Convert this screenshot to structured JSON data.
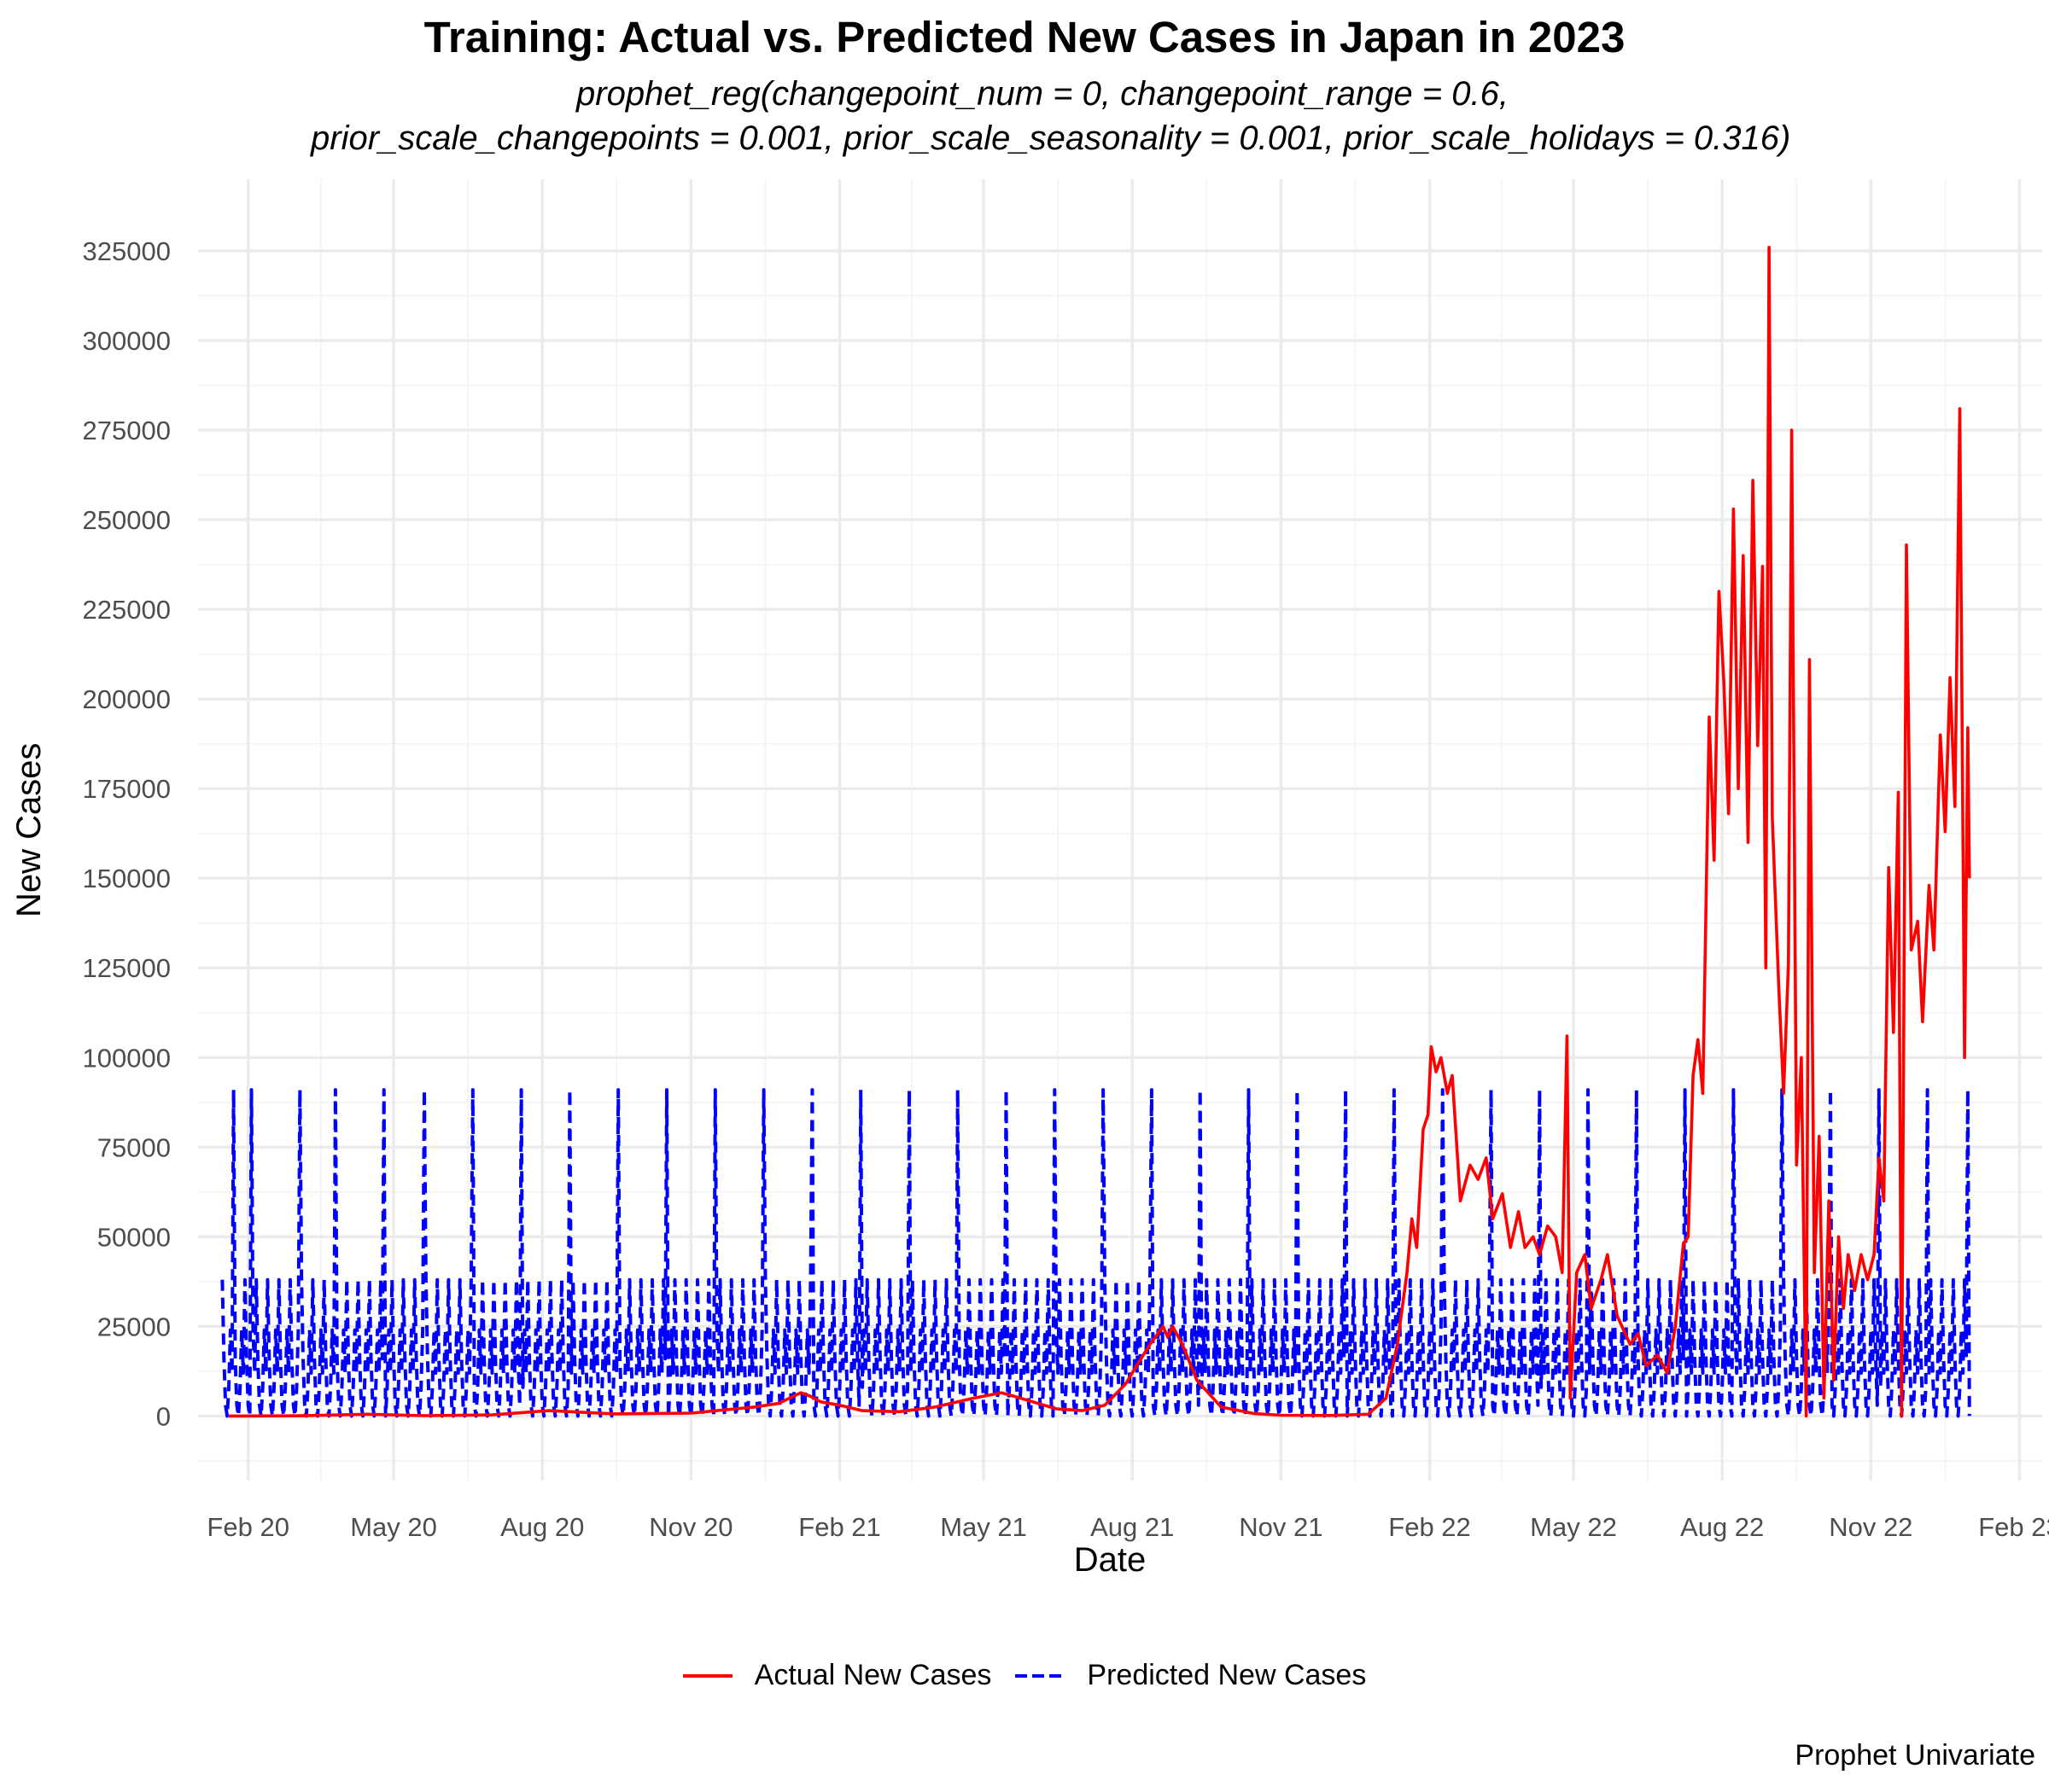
{
  "chart_data": {
    "type": "line",
    "title": "Training: Actual vs. Predicted New Cases in Japan in 2023",
    "subtitle_line1": "prophet_reg(changepoint_num = 0, changepoint_range = 0.6,",
    "subtitle_line2": "prior_scale_changepoints = 0.001, prior_scale_seasonality = 0.001, prior_scale_holidays = 0.316)",
    "xlabel": "Date",
    "ylabel": "New Cases",
    "caption": "Prophet Univariate",
    "xlim": [
      "2020-01-01",
      "2023-02-15"
    ],
    "ylim": [
      -18000,
      345000
    ],
    "x_ticks": [
      {
        "date": "2020-02-01",
        "label": "Feb 20"
      },
      {
        "date": "2020-05-01",
        "label": "May 20"
      },
      {
        "date": "2020-08-01",
        "label": "Aug 20"
      },
      {
        "date": "2020-11-01",
        "label": "Nov 20"
      },
      {
        "date": "2021-02-01",
        "label": "Feb 21"
      },
      {
        "date": "2021-05-01",
        "label": "May 21"
      },
      {
        "date": "2021-08-01",
        "label": "Aug 21"
      },
      {
        "date": "2021-11-01",
        "label": "Nov 21"
      },
      {
        "date": "2022-02-01",
        "label": "Feb 22"
      },
      {
        "date": "2022-05-01",
        "label": "May 22"
      },
      {
        "date": "2022-08-01",
        "label": "Aug 22"
      },
      {
        "date": "2022-11-01",
        "label": "Nov 22"
      },
      {
        "date": "2023-02-01",
        "label": "Feb 23"
      }
    ],
    "y_ticks": [
      0,
      25000,
      50000,
      75000,
      100000,
      125000,
      150000,
      175000,
      200000,
      225000,
      250000,
      275000,
      300000,
      325000
    ],
    "legend_position": "bottom",
    "grid": true,
    "series": [
      {
        "name": "Actual New Cases",
        "color": "#ff0000",
        "line_style": "solid",
        "points": [
          [
            "2020-01-20",
            0
          ],
          [
            "2020-03-01",
            50
          ],
          [
            "2020-04-15",
            500
          ],
          [
            "2020-05-20",
            100
          ],
          [
            "2020-07-01",
            300
          ],
          [
            "2020-08-05",
            1500
          ],
          [
            "2020-09-15",
            600
          ],
          [
            "2020-11-01",
            800
          ],
          [
            "2020-12-10",
            2500
          ],
          [
            "2020-12-25",
            3500
          ],
          [
            "2021-01-08",
            6500
          ],
          [
            "2021-01-14",
            5500
          ],
          [
            "2021-01-20",
            4000
          ],
          [
            "2021-02-01",
            3000
          ],
          [
            "2021-02-15",
            1500
          ],
          [
            "2021-03-10",
            1200
          ],
          [
            "2021-04-01",
            2500
          ],
          [
            "2021-04-25",
            5000
          ],
          [
            "2021-05-12",
            6500
          ],
          [
            "2021-05-20",
            5500
          ],
          [
            "2021-06-15",
            2000
          ],
          [
            "2021-07-01",
            1500
          ],
          [
            "2021-07-15",
            3000
          ],
          [
            "2021-07-28",
            9000
          ],
          [
            "2021-08-05",
            15000
          ],
          [
            "2021-08-12",
            20000
          ],
          [
            "2021-08-20",
            25000
          ],
          [
            "2021-08-23",
            22000
          ],
          [
            "2021-08-26",
            25000
          ],
          [
            "2021-09-01",
            20000
          ],
          [
            "2021-09-10",
            10000
          ],
          [
            "2021-09-25",
            2500
          ],
          [
            "2021-10-15",
            700
          ],
          [
            "2021-11-01",
            200
          ],
          [
            "2021-12-01",
            150
          ],
          [
            "2021-12-25",
            500
          ],
          [
            "2022-01-05",
            5000
          ],
          [
            "2022-01-12",
            20000
          ],
          [
            "2022-01-18",
            40000
          ],
          [
            "2022-01-21",
            55000
          ],
          [
            "2022-01-24",
            47000
          ],
          [
            "2022-01-28",
            80000
          ],
          [
            "2022-01-31",
            84000
          ],
          [
            "2022-02-02",
            103000
          ],
          [
            "2022-02-05",
            96000
          ],
          [
            "2022-02-08",
            100000
          ],
          [
            "2022-02-12",
            90000
          ],
          [
            "2022-02-15",
            95000
          ],
          [
            "2022-02-20",
            60000
          ],
          [
            "2022-02-26",
            70000
          ],
          [
            "2022-03-03",
            66000
          ],
          [
            "2022-03-08",
            72000
          ],
          [
            "2022-03-12",
            55000
          ],
          [
            "2022-03-18",
            62000
          ],
          [
            "2022-03-23",
            47000
          ],
          [
            "2022-03-28",
            57000
          ],
          [
            "2022-04-01",
            47000
          ],
          [
            "2022-04-06",
            50000
          ],
          [
            "2022-04-10",
            45000
          ],
          [
            "2022-04-15",
            53000
          ],
          [
            "2022-04-20",
            50000
          ],
          [
            "2022-04-24",
            40000
          ],
          [
            "2022-04-27",
            106000
          ],
          [
            "2022-04-29",
            5000
          ],
          [
            "2022-05-03",
            40000
          ],
          [
            "2022-05-08",
            45000
          ],
          [
            "2022-05-12",
            30000
          ],
          [
            "2022-05-18",
            38000
          ],
          [
            "2022-05-22",
            45000
          ],
          [
            "2022-05-28",
            28000
          ],
          [
            "2022-06-05",
            20000
          ],
          [
            "2022-06-10",
            23000
          ],
          [
            "2022-06-15",
            14000
          ],
          [
            "2022-06-22",
            17000
          ],
          [
            "2022-06-28",
            12000
          ],
          [
            "2022-07-03",
            25000
          ],
          [
            "2022-07-08",
            48000
          ],
          [
            "2022-07-11",
            50000
          ],
          [
            "2022-07-14",
            95000
          ],
          [
            "2022-07-17",
            105000
          ],
          [
            "2022-07-20",
            90000
          ],
          [
            "2022-07-24",
            195000
          ],
          [
            "2022-07-27",
            155000
          ],
          [
            "2022-07-30",
            230000
          ],
          [
            "2022-08-02",
            205000
          ],
          [
            "2022-08-05",
            168000
          ],
          [
            "2022-08-08",
            253000
          ],
          [
            "2022-08-11",
            175000
          ],
          [
            "2022-08-14",
            240000
          ],
          [
            "2022-08-17",
            160000
          ],
          [
            "2022-08-20",
            261000
          ],
          [
            "2022-08-23",
            187000
          ],
          [
            "2022-08-26",
            237000
          ],
          [
            "2022-08-28",
            125000
          ],
          [
            "2022-08-30",
            326000
          ],
          [
            "2022-09-01",
            167000
          ],
          [
            "2022-09-05",
            120000
          ],
          [
            "2022-09-08",
            90000
          ],
          [
            "2022-09-11",
            126000
          ],
          [
            "2022-09-13",
            275000
          ],
          [
            "2022-09-16",
            70000
          ],
          [
            "2022-09-19",
            100000
          ],
          [
            "2022-09-22",
            0
          ],
          [
            "2022-09-24",
            211000
          ],
          [
            "2022-09-27",
            40000
          ],
          [
            "2022-09-30",
            78000
          ],
          [
            "2022-10-03",
            5000
          ],
          [
            "2022-10-06",
            60000
          ],
          [
            "2022-10-09",
            10000
          ],
          [
            "2022-10-12",
            50000
          ],
          [
            "2022-10-15",
            30000
          ],
          [
            "2022-10-18",
            45000
          ],
          [
            "2022-10-22",
            35000
          ],
          [
            "2022-10-26",
            45000
          ],
          [
            "2022-10-30",
            38000
          ],
          [
            "2022-11-03",
            45000
          ],
          [
            "2022-11-06",
            72000
          ],
          [
            "2022-11-09",
            60000
          ],
          [
            "2022-11-12",
            153000
          ],
          [
            "2022-11-15",
            107000
          ],
          [
            "2022-11-18",
            174000
          ],
          [
            "2022-11-20",
            0
          ],
          [
            "2022-11-23",
            243000
          ],
          [
            "2022-11-26",
            130000
          ],
          [
            "2022-11-30",
            138000
          ],
          [
            "2022-12-03",
            110000
          ],
          [
            "2022-12-07",
            148000
          ],
          [
            "2022-12-10",
            130000
          ],
          [
            "2022-12-14",
            190000
          ],
          [
            "2022-12-17",
            163000
          ],
          [
            "2022-12-20",
            206000
          ],
          [
            "2022-12-23",
            170000
          ],
          [
            "2022-12-26",
            281000
          ],
          [
            "2022-12-29",
            100000
          ],
          [
            "2022-12-31",
            192000
          ],
          [
            "2023-01-01",
            150000
          ]
        ]
      },
      {
        "name": "Predicted New Cases",
        "color": "#0000ff",
        "line_style": "dashed",
        "start": "2020-01-16",
        "end": "2023-01-01",
        "weekly_pattern": [
          38000,
          16000,
          3000,
          0,
          8000,
          24000,
          12000
        ],
        "peak_dates": [
          "2020-01-23",
          "2020-02-03",
          "2020-03-04",
          "2020-03-26",
          "2020-04-25",
          "2020-05-20",
          "2020-06-19",
          "2020-07-19",
          "2020-08-18",
          "2020-09-17",
          "2020-10-17",
          "2020-11-16",
          "2020-12-16",
          "2021-01-15",
          "2021-02-14",
          "2021-03-16",
          "2021-04-15",
          "2021-05-15",
          "2021-06-14",
          "2021-07-14",
          "2021-08-13",
          "2021-09-12",
          "2021-10-12",
          "2021-11-11",
          "2021-12-11",
          "2022-01-10",
          "2022-02-09",
          "2022-03-11",
          "2022-04-10",
          "2022-05-10",
          "2022-06-09",
          "2022-07-09",
          "2022-08-08",
          "2022-09-07",
          "2022-10-07",
          "2022-11-06",
          "2022-12-06",
          "2022-12-31"
        ],
        "peak_value": 91000
      }
    ]
  }
}
